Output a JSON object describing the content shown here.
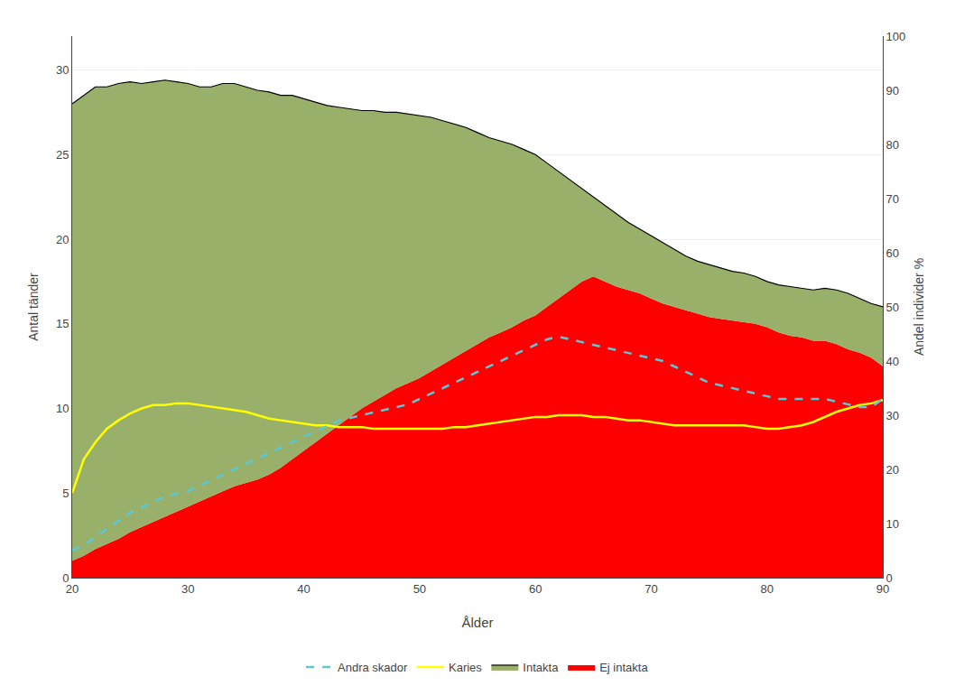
{
  "chart_data": {
    "type": "line",
    "xlabel": "Ålder",
    "ylabel": "Antal tänder",
    "y2label": "Andel individer %",
    "x": [
      20,
      21,
      22,
      23,
      24,
      25,
      26,
      27,
      28,
      29,
      30,
      31,
      32,
      33,
      34,
      35,
      36,
      37,
      38,
      39,
      40,
      41,
      42,
      43,
      44,
      45,
      46,
      47,
      48,
      49,
      50,
      51,
      52,
      53,
      54,
      55,
      56,
      57,
      58,
      59,
      60,
      61,
      62,
      63,
      64,
      65,
      66,
      67,
      68,
      69,
      70,
      71,
      72,
      73,
      74,
      75,
      76,
      77,
      78,
      79,
      80,
      81,
      82,
      83,
      84,
      85,
      86,
      87,
      88,
      89,
      90
    ],
    "series": [
      {
        "name": "Ej intakta",
        "type": "area",
        "color": "#ff0000",
        "values": [
          1.0,
          1.3,
          1.7,
          2.0,
          2.3,
          2.7,
          3.0,
          3.3,
          3.6,
          3.9,
          4.2,
          4.5,
          4.8,
          5.1,
          5.4,
          5.6,
          5.8,
          6.1,
          6.5,
          7.0,
          7.5,
          8.0,
          8.5,
          9.0,
          9.5,
          10.0,
          10.4,
          10.8,
          11.2,
          11.5,
          11.8,
          12.2,
          12.6,
          13.0,
          13.4,
          13.8,
          14.2,
          14.5,
          14.8,
          15.2,
          15.5,
          16.0,
          16.5,
          17.0,
          17.5,
          17.8,
          17.5,
          17.2,
          17.0,
          16.8,
          16.5,
          16.2,
          16.0,
          15.8,
          15.6,
          15.4,
          15.3,
          15.2,
          15.1,
          15.0,
          14.8,
          14.5,
          14.3,
          14.2,
          14.0,
          14.0,
          13.8,
          13.5,
          13.3,
          13.0,
          12.5
        ]
      },
      {
        "name": "Intakta",
        "type": "area",
        "color": "#99b06a",
        "values": [
          28.0,
          28.5,
          29.0,
          29.0,
          29.2,
          29.3,
          29.2,
          29.3,
          29.4,
          29.3,
          29.2,
          29.0,
          29.0,
          29.2,
          29.2,
          29.0,
          28.8,
          28.7,
          28.5,
          28.5,
          28.3,
          28.1,
          27.9,
          27.8,
          27.7,
          27.6,
          27.6,
          27.5,
          27.5,
          27.4,
          27.3,
          27.2,
          27.0,
          26.8,
          26.6,
          26.3,
          26.0,
          25.8,
          25.6,
          25.3,
          25.0,
          24.5,
          24.0,
          23.5,
          23.0,
          22.5,
          22.0,
          21.5,
          21.0,
          20.6,
          20.2,
          19.8,
          19.4,
          19.0,
          18.7,
          18.5,
          18.3,
          18.1,
          18.0,
          17.8,
          17.5,
          17.3,
          17.2,
          17.1,
          17.0,
          17.1,
          17.0,
          16.8,
          16.5,
          16.2,
          16.0
        ]
      },
      {
        "name": "Karies",
        "type": "line",
        "color": "#ffff00",
        "line_style": "solid",
        "values": [
          5.0,
          7.0,
          8.0,
          8.8,
          9.3,
          9.7,
          10.0,
          10.2,
          10.2,
          10.3,
          10.3,
          10.2,
          10.1,
          10.0,
          9.9,
          9.8,
          9.6,
          9.4,
          9.3,
          9.2,
          9.1,
          9.0,
          9.0,
          8.9,
          8.9,
          8.9,
          8.8,
          8.8,
          8.8,
          8.8,
          8.8,
          8.8,
          8.8,
          8.9,
          8.9,
          9.0,
          9.1,
          9.2,
          9.3,
          9.4,
          9.5,
          9.5,
          9.6,
          9.6,
          9.6,
          9.5,
          9.5,
          9.4,
          9.3,
          9.3,
          9.2,
          9.1,
          9.0,
          9.0,
          9.0,
          9.0,
          9.0,
          9.0,
          9.0,
          8.9,
          8.8,
          8.8,
          8.9,
          9.0,
          9.2,
          9.5,
          9.8,
          10.0,
          10.2,
          10.3,
          10.5
        ]
      },
      {
        "name": "Andra skador",
        "type": "line",
        "color": "#5bc8d8",
        "line_style": "dashed",
        "axis": "y2",
        "values": [
          5.0,
          6.0,
          7.5,
          9.0,
          10.5,
          12.0,
          13.0,
          14.0,
          15.0,
          15.5,
          16.0,
          17.0,
          18.0,
          19.0,
          20.0,
          21.0,
          22.0,
          23.0,
          24.0,
          25.0,
          26.0,
          27.0,
          28.0,
          29.0,
          29.5,
          30.0,
          30.5,
          31.0,
          31.5,
          32.0,
          33.0,
          34.0,
          35.0,
          36.0,
          37.0,
          38.0,
          39.0,
          40.0,
          41.0,
          42.0,
          43.0,
          44.0,
          44.5,
          44.0,
          43.5,
          43.0,
          42.5,
          42.0,
          41.5,
          41.0,
          40.5,
          40.0,
          39.0,
          38.0,
          37.0,
          36.0,
          35.5,
          35.0,
          34.5,
          34.0,
          33.5,
          33.0,
          33.0,
          33.0,
          33.0,
          33.0,
          32.5,
          32.0,
          31.5,
          31.5,
          33.0
        ]
      }
    ],
    "xlim": [
      20,
      90
    ],
    "xticks": [
      20,
      30,
      40,
      50,
      60,
      70,
      80,
      90
    ],
    "ylim": [
      0,
      32
    ],
    "yticks": [
      0,
      5,
      10,
      15,
      20,
      25,
      30
    ],
    "y2lim": [
      0,
      100
    ],
    "y2ticks": [
      0,
      10,
      20,
      30,
      40,
      50,
      60,
      70,
      80,
      90,
      100
    ],
    "grid": true,
    "legend": "bottom"
  }
}
